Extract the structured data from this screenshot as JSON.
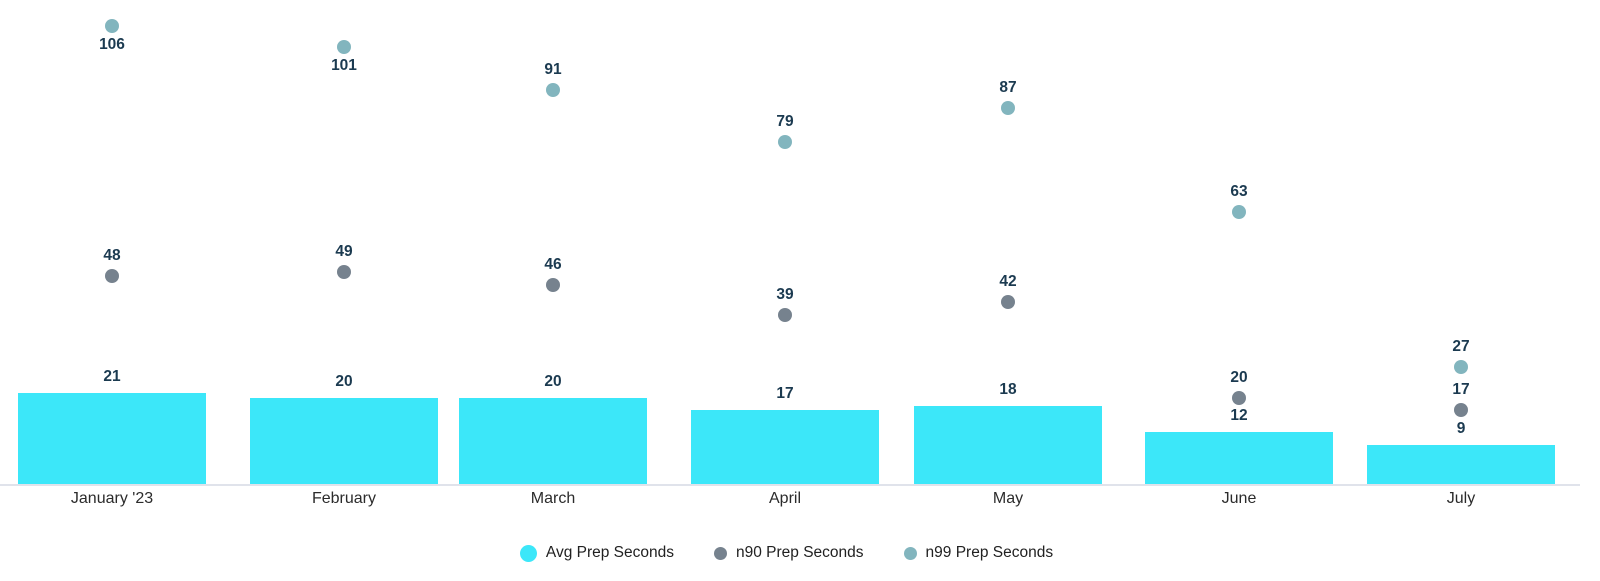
{
  "chart_data": {
    "type": "bar",
    "title": "",
    "xlabel": "",
    "ylabel": "",
    "categories": [
      "January '23",
      "February",
      "March",
      "April",
      "May",
      "June",
      "July"
    ],
    "series": [
      {
        "name": "Avg Prep Seconds",
        "type": "bar",
        "color": "#3CE7F9",
        "values": [
          21,
          20,
          20,
          17,
          18,
          12,
          9
        ]
      },
      {
        "name": "n90 Prep Seconds",
        "type": "scatter",
        "color": "#76828E",
        "values": [
          48,
          49,
          46,
          39,
          42,
          20,
          17
        ]
      },
      {
        "name": "n99 Prep Seconds",
        "type": "scatter",
        "color": "#82B5BE",
        "values": [
          106,
          101,
          91,
          79,
          87,
          63,
          27
        ]
      }
    ],
    "ylim": [
      0,
      110
    ],
    "grid": false,
    "y_axis_visible": false,
    "legend_position": "bottom",
    "value_labels_shown": true,
    "value_label_color": "#1B3A50",
    "axis_label_color": "#2B2B2B",
    "legend_text_color": "#212121",
    "axis_line_color": "#E0E3EB",
    "background_color": "#FFFFFF"
  }
}
